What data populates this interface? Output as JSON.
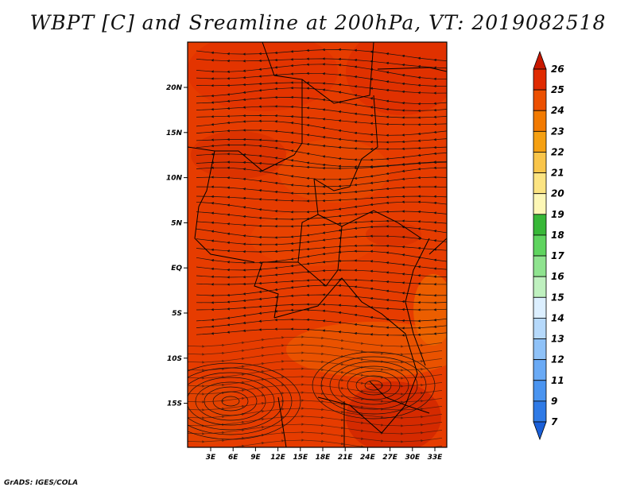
{
  "chart_data": {
    "type": "heatmap",
    "title": "WBPT [C] and Sreamline at 200hPa, VT: 2019082518",
    "variable": "WBPT [C]",
    "level": "200hPa",
    "valid_time": "2019082518",
    "overlay": "streamlines",
    "x_ticks": [
      "3E",
      "6E",
      "9E",
      "12E",
      "15E",
      "18E",
      "21E",
      "24E",
      "27E",
      "30E",
      "33E"
    ],
    "y_ticks": [
      "20N",
      "15N",
      "10N",
      "5N",
      "EQ",
      "5S",
      "10S",
      "15S"
    ],
    "colorbar": {
      "labels": [
        "7",
        "9",
        "11",
        "12",
        "13",
        "14",
        "15",
        "16",
        "17",
        "18",
        "19",
        "20",
        "21",
        "22",
        "23",
        "24",
        "25",
        "26"
      ],
      "colors": [
        "#1a5fd8",
        "#2f7ae6",
        "#4a94f0",
        "#6aaaf5",
        "#8fc2f8",
        "#b6d9fb",
        "#dcefff",
        "#bff0bf",
        "#8fe38f",
        "#5fd45f",
        "#38b838",
        "#fdf7b6",
        "#fce482",
        "#f9c54a",
        "#f5a012",
        "#f27a00",
        "#ec5000",
        "#e02a00",
        "#c81800"
      ]
    },
    "field_range": [
      23,
      25.5
    ],
    "dominant_value": 24
  },
  "credit": "GrADS: IGES/COLA"
}
